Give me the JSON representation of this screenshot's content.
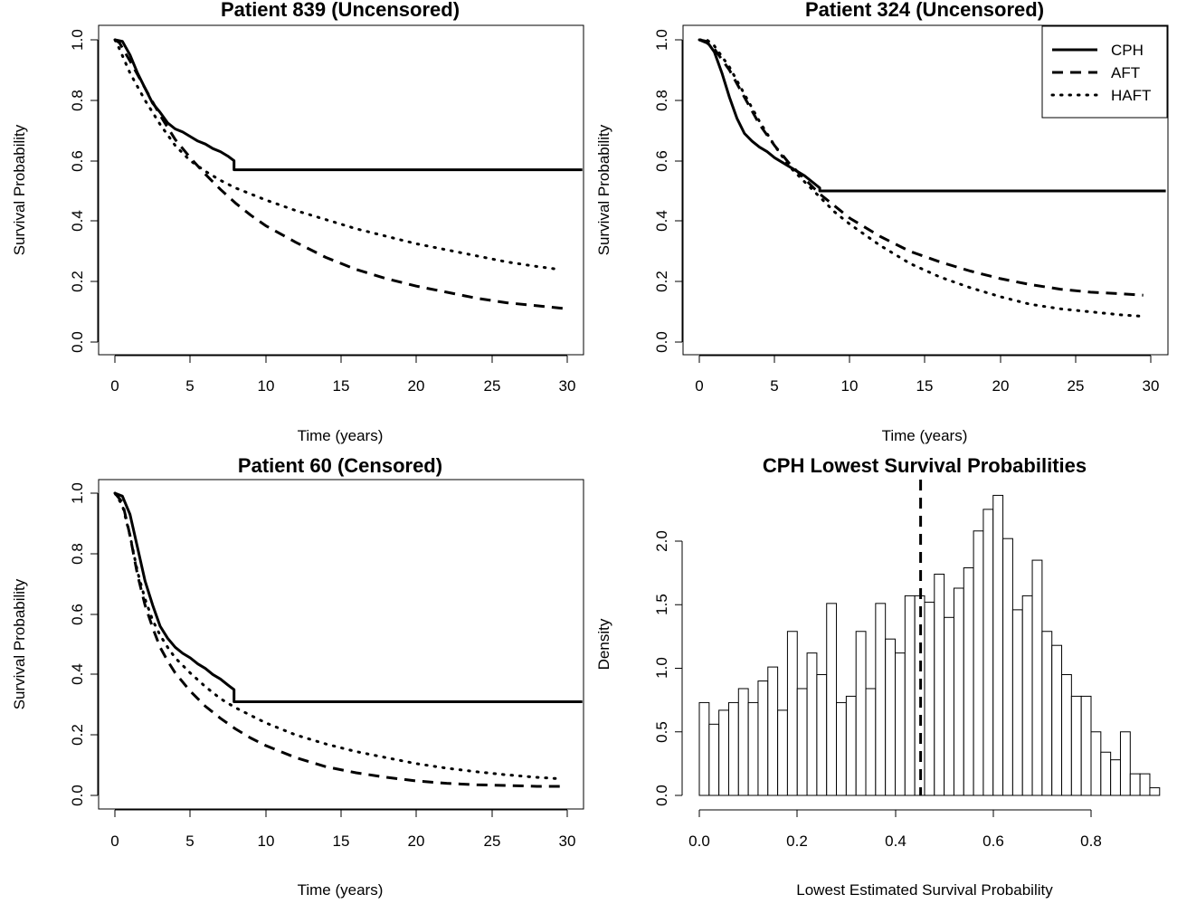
{
  "chart_data": [
    {
      "type": "line",
      "title": "Patient 839 (Uncensored)",
      "xlabel": "Time (years)",
      "ylabel": "Survival Probability",
      "xlim": [
        0,
        30
      ],
      "ylim": [
        0,
        1
      ],
      "xticks": [
        "0",
        "5",
        "10",
        "15",
        "20",
        "25",
        "30"
      ],
      "yticks": [
        "0.0",
        "0.2",
        "0.4",
        "0.6",
        "0.8",
        "1.0"
      ],
      "grid": false,
      "series": [
        {
          "name": "CPH",
          "style": "solid",
          "step": true,
          "x": [
            0,
            0.5,
            1.0,
            1.5,
            2.0,
            2.5,
            3.0,
            3.5,
            4.0,
            4.5,
            5.0,
            5.5,
            6.0,
            6.5,
            7.0,
            7.5,
            7.9,
            7.9,
            31
          ],
          "y": [
            1.0,
            0.995,
            0.95,
            0.89,
            0.84,
            0.79,
            0.76,
            0.725,
            0.705,
            0.695,
            0.68,
            0.665,
            0.655,
            0.64,
            0.63,
            0.615,
            0.6,
            0.57,
            0.57
          ]
        },
        {
          "name": "AFT",
          "style": "dashed",
          "x": [
            0,
            0.3,
            1,
            2,
            3,
            4,
            5,
            6,
            7,
            8,
            9,
            10,
            12,
            14,
            16,
            18,
            20,
            22,
            24,
            26,
            28,
            30
          ],
          "y": [
            1.0,
            0.99,
            0.93,
            0.84,
            0.75,
            0.67,
            0.61,
            0.555,
            0.505,
            0.46,
            0.42,
            0.385,
            0.33,
            0.28,
            0.24,
            0.21,
            0.185,
            0.165,
            0.145,
            0.13,
            0.12,
            0.11
          ]
        },
        {
          "name": "HAFT",
          "style": "dotted",
          "x": [
            0,
            0.3,
            1,
            2,
            3,
            4,
            5,
            6,
            7,
            8,
            9,
            10,
            12,
            14,
            16,
            18,
            20,
            22,
            24,
            26,
            28,
            29.5
          ],
          "y": [
            1.0,
            0.97,
            0.89,
            0.8,
            0.72,
            0.65,
            0.6,
            0.565,
            0.535,
            0.51,
            0.49,
            0.47,
            0.435,
            0.405,
            0.375,
            0.35,
            0.325,
            0.305,
            0.285,
            0.265,
            0.25,
            0.24
          ]
        }
      ]
    },
    {
      "type": "line",
      "title": "Patient 324 (Uncensored)",
      "xlabel": "Time (years)",
      "ylabel": "Survival Probability",
      "xlim": [
        0,
        30
      ],
      "ylim": [
        0,
        1
      ],
      "xticks": [
        "0",
        "5",
        "10",
        "15",
        "20",
        "25",
        "30"
      ],
      "yticks": [
        "0.0",
        "0.2",
        "0.4",
        "0.6",
        "0.8",
        "1.0"
      ],
      "grid": false,
      "legend": {
        "position": "top-right",
        "entries": [
          {
            "label": "CPH",
            "style": "solid"
          },
          {
            "label": "AFT",
            "style": "dashed"
          },
          {
            "label": "HAFT",
            "style": "dotted"
          }
        ]
      },
      "series": [
        {
          "name": "CPH",
          "style": "solid",
          "step": true,
          "x": [
            0,
            0.5,
            1.0,
            1.5,
            2.0,
            2.5,
            3.0,
            3.5,
            4.0,
            4.5,
            5.0,
            5.5,
            6.0,
            6.5,
            7.0,
            7.5,
            8.0,
            8.0,
            31
          ],
          "y": [
            1.0,
            0.995,
            0.96,
            0.89,
            0.81,
            0.74,
            0.69,
            0.665,
            0.645,
            0.63,
            0.61,
            0.595,
            0.58,
            0.565,
            0.55,
            0.53,
            0.51,
            0.5,
            0.5
          ]
        },
        {
          "name": "AFT",
          "style": "dashed",
          "x": [
            0,
            0.5,
            1,
            2,
            3,
            4,
            5,
            6,
            7,
            8,
            9,
            10,
            12,
            14,
            16,
            18,
            20,
            22,
            24,
            26,
            28,
            29.5
          ],
          "y": [
            1.0,
            0.99,
            0.97,
            0.9,
            0.81,
            0.72,
            0.65,
            0.59,
            0.54,
            0.49,
            0.45,
            0.41,
            0.35,
            0.3,
            0.265,
            0.235,
            0.21,
            0.19,
            0.175,
            0.165,
            0.16,
            0.155
          ]
        },
        {
          "name": "HAFT",
          "style": "dotted",
          "x": [
            0,
            0.5,
            1,
            2,
            3,
            4,
            5,
            6,
            7,
            8,
            9,
            10,
            12,
            14,
            16,
            18,
            20,
            22,
            24,
            26,
            28,
            29.5
          ],
          "y": [
            1.0,
            1.0,
            0.98,
            0.91,
            0.82,
            0.73,
            0.65,
            0.58,
            0.53,
            0.48,
            0.43,
            0.39,
            0.32,
            0.26,
            0.215,
            0.18,
            0.15,
            0.125,
            0.11,
            0.1,
            0.09,
            0.085
          ]
        }
      ]
    },
    {
      "type": "line",
      "title": "Patient 60 (Censored)",
      "xlabel": "Time (years)",
      "ylabel": "Survival Probability",
      "xlim": [
        0,
        30
      ],
      "ylim": [
        0,
        1
      ],
      "xticks": [
        "0",
        "5",
        "10",
        "15",
        "20",
        "25",
        "30"
      ],
      "yticks": [
        "0.0",
        "0.2",
        "0.4",
        "0.6",
        "0.8",
        "1.0"
      ],
      "grid": false,
      "series": [
        {
          "name": "CPH",
          "style": "solid",
          "step": true,
          "x": [
            0,
            0.5,
            1.0,
            1.5,
            2.0,
            2.5,
            3.0,
            3.5,
            4.0,
            4.5,
            5.0,
            5.5,
            6.0,
            6.5,
            7.0,
            7.5,
            7.9,
            7.9,
            31
          ],
          "y": [
            1.0,
            0.99,
            0.93,
            0.82,
            0.71,
            0.63,
            0.56,
            0.52,
            0.49,
            0.47,
            0.455,
            0.435,
            0.42,
            0.4,
            0.385,
            0.365,
            0.35,
            0.31,
            0.31
          ]
        },
        {
          "name": "AFT",
          "style": "dashed",
          "x": [
            0,
            0.5,
            1,
            1.5,
            2,
            2.5,
            3,
            3.5,
            4,
            5,
            6,
            7,
            8,
            9,
            10,
            12,
            14,
            16,
            18,
            20,
            22,
            24,
            26,
            28,
            29.5
          ],
          "y": [
            1.0,
            0.97,
            0.86,
            0.73,
            0.63,
            0.555,
            0.49,
            0.445,
            0.405,
            0.345,
            0.295,
            0.255,
            0.22,
            0.19,
            0.165,
            0.125,
            0.095,
            0.075,
            0.06,
            0.048,
            0.04,
            0.035,
            0.033,
            0.03,
            0.03
          ]
        },
        {
          "name": "HAFT",
          "style": "dotted",
          "x": [
            0,
            0.5,
            1,
            1.5,
            2,
            2.5,
            3,
            3.5,
            4,
            5,
            6,
            7,
            8,
            9,
            10,
            12,
            14,
            16,
            18,
            20,
            22,
            24,
            26,
            28,
            29.5
          ],
          "y": [
            1.0,
            0.96,
            0.86,
            0.74,
            0.65,
            0.58,
            0.53,
            0.49,
            0.455,
            0.405,
            0.36,
            0.32,
            0.29,
            0.265,
            0.24,
            0.2,
            0.17,
            0.145,
            0.125,
            0.105,
            0.09,
            0.078,
            0.068,
            0.06,
            0.055
          ]
        }
      ]
    },
    {
      "type": "bar",
      "subtype": "histogram",
      "title": "CPH Lowest Survival Probabilities",
      "xlabel": "Lowest Estimated Survival Probability",
      "ylabel": "Density",
      "xlim": [
        0,
        0.8
      ],
      "ylim": [
        0,
        2.0
      ],
      "xticks": [
        "0.0",
        "0.2",
        "0.4",
        "0.6",
        "0.8"
      ],
      "yticks": [
        "0.0",
        "0.5",
        "1.0",
        "1.5",
        "2.0"
      ],
      "grid": false,
      "bin_width": 0.02,
      "bin_start": 0.0,
      "values": [
        0.73,
        0.56,
        0.67,
        0.73,
        0.84,
        0.73,
        0.9,
        1.01,
        0.67,
        1.29,
        0.84,
        1.12,
        0.95,
        1.51,
        0.73,
        0.78,
        1.29,
        0.84,
        1.51,
        1.23,
        1.12,
        1.57,
        1.57,
        1.52,
        1.74,
        1.4,
        1.63,
        1.79,
        2.08,
        2.25,
        2.36,
        2.02,
        1.46,
        1.57,
        1.85,
        1.29,
        1.18,
        0.95,
        0.78,
        0.78,
        0.5,
        0.34,
        0.28,
        0.5,
        0.17,
        0.17,
        0.06
      ],
      "reference_line": {
        "x": 0.452,
        "style": "dashed"
      }
    }
  ]
}
